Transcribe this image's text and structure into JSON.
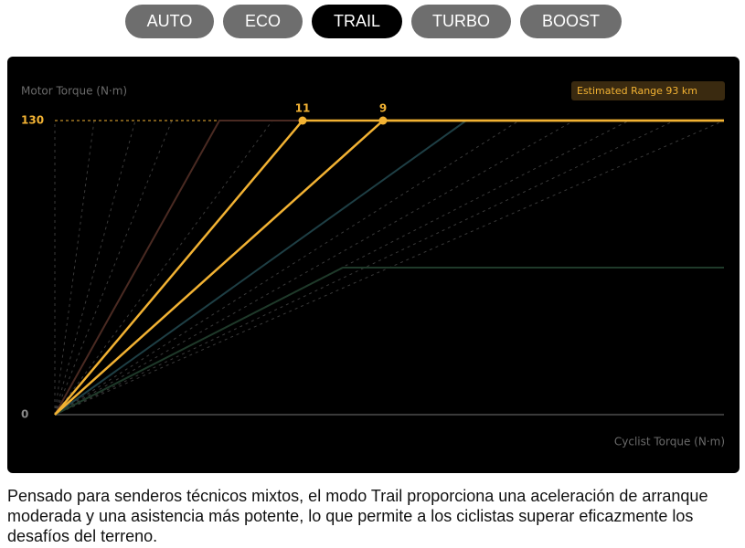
{
  "tabs": [
    "AUTO",
    "ECO",
    "TRAIL",
    "TURBO",
    "BOOST"
  ],
  "active_tab": 2,
  "chart_data": {
    "type": "line",
    "y_label": "Motor Torque (N·m)",
    "x_label": "Cyclist Torque (N·m)",
    "range_button": "Estimated Range 93 km",
    "ylim": [
      0,
      130
    ],
    "yticks": [
      0,
      130
    ],
    "markers": [
      {
        "label": "11",
        "value": 130
      },
      {
        "label": "9",
        "value": 130
      }
    ]
  },
  "description": "Pensado para senderos técnicos mixtos, el modo Trail proporciona una aceleración de arranque moderada y una asistencia más potente, lo que permite a los ciclistas superar eficazmente los desafíos del terreno."
}
